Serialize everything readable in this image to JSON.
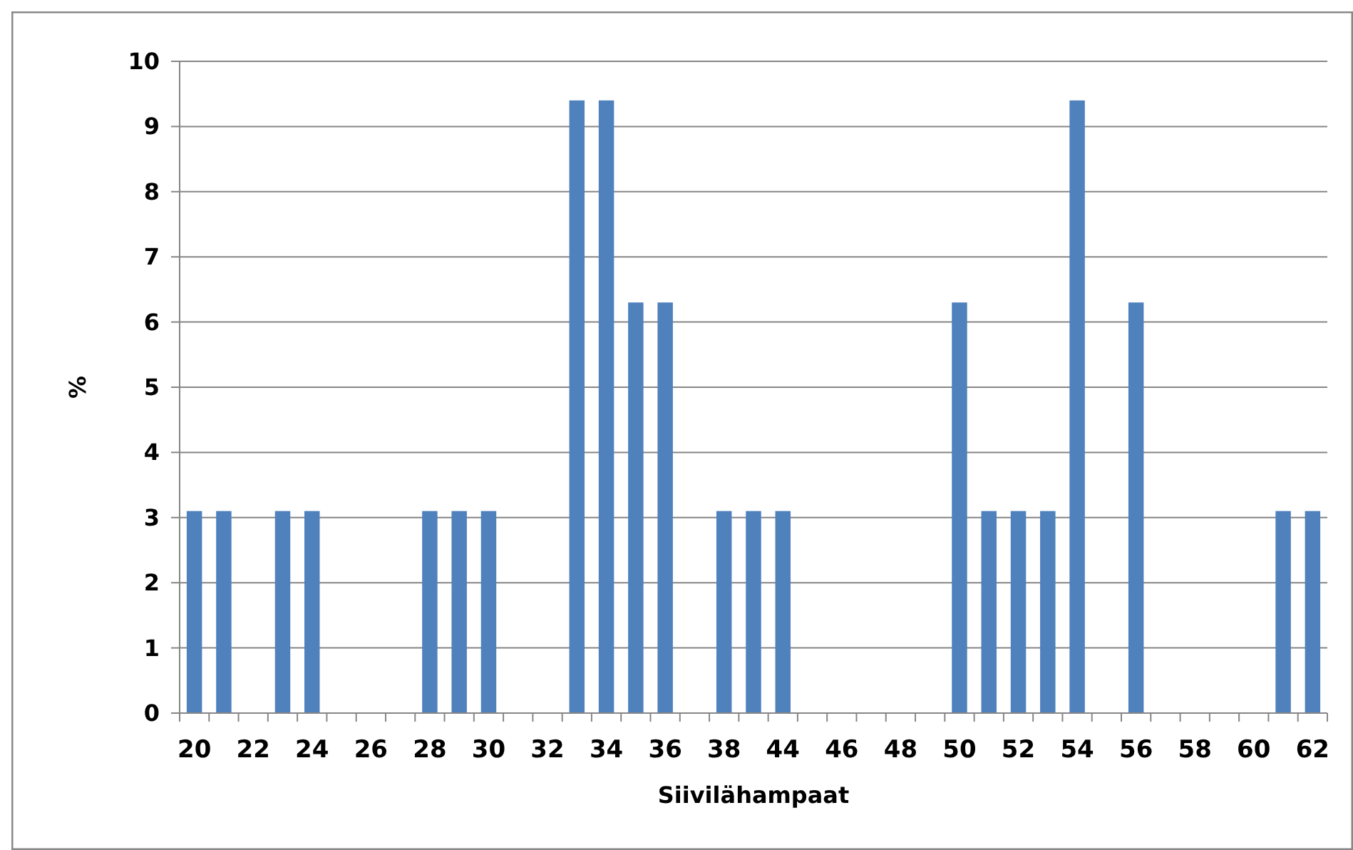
{
  "chart_data": {
    "type": "bar",
    "xlabel": "Siivilähampaat",
    "ylabel": "%",
    "categories": [
      "20",
      null,
      "22",
      null,
      "24",
      null,
      "26",
      null,
      "28",
      null,
      "30",
      null,
      "32",
      null,
      "34",
      null,
      "36",
      null,
      "38",
      null,
      "44",
      null,
      "46",
      null,
      "48",
      null,
      "50",
      null,
      "52",
      null,
      "54",
      null,
      "56",
      null,
      "58",
      null,
      "60",
      null,
      "62"
    ],
    "values": [
      3.1,
      3.1,
      0,
      3.1,
      3.1,
      0,
      0,
      0,
      3.1,
      3.1,
      3.1,
      0,
      0,
      9.4,
      9.4,
      6.3,
      6.3,
      0,
      3.1,
      3.1,
      3.1,
      0,
      0,
      0,
      0,
      0,
      6.3,
      3.1,
      3.1,
      3.1,
      9.4,
      0,
      6.3,
      0,
      0,
      0,
      0,
      3.1,
      3.1
    ],
    "color": "#4f81bd",
    "ylim": [
      0,
      10
    ],
    "yticks": [
      0,
      1,
      2,
      3,
      4,
      5,
      6,
      7,
      8,
      9,
      10
    ],
    "grid": "y"
  }
}
